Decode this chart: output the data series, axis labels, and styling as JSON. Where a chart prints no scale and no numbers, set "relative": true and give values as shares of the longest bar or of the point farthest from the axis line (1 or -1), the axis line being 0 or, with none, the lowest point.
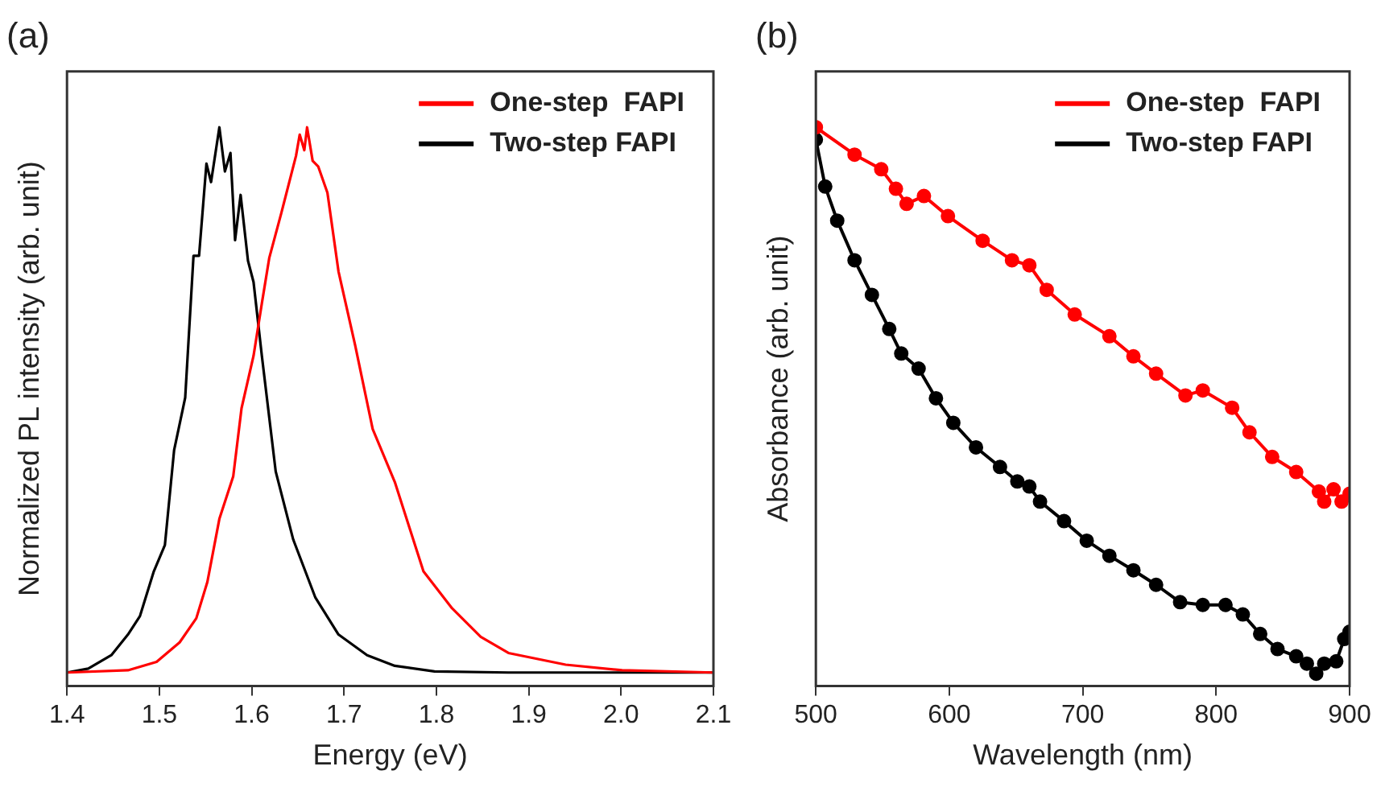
{
  "chart_data": [
    {
      "type": "line",
      "title": "(a)",
      "xlabel": "Energy (eV)",
      "ylabel": "Normalized PL intensity (arb. unit)",
      "relative": true,
      "legend": "top right",
      "xlim": [
        1.4,
        2.1
      ],
      "xticks": [
        1.4,
        1.5,
        1.6,
        1.7,
        1.8,
        1.9,
        {
          "value": 2,
          "label": "2.0"
        },
        2.1
      ],
      "series": [
        {
          "name": "One-step  FAPI",
          "color": "#ff0000",
          "x": [
            1.4,
            1.466,
            1.497,
            1.522,
            1.54,
            1.552,
            1.565,
            1.58,
            1.589,
            1.602,
            1.611,
            1.619,
            1.632,
            1.648,
            1.652,
            1.657,
            1.66,
            1.666,
            1.672,
            1.682,
            1.694,
            1.712,
            1.731,
            1.755,
            1.786,
            1.817,
            1.848,
            1.878,
            1.94,
            2.001,
            2.1
          ],
          "values": [
            0.024,
            0.028,
            0.043,
            0.078,
            0.121,
            0.186,
            0.299,
            0.375,
            0.497,
            0.591,
            0.685,
            0.766,
            0.846,
            0.949,
            0.987,
            0.959,
            1,
            0.94,
            0.93,
            0.883,
            0.742,
            0.61,
            0.46,
            0.365,
            0.205,
            0.139,
            0.088,
            0.059,
            0.038,
            0.028,
            0.024
          ]
        },
        {
          "name": "Two-step FAPI",
          "color": "#000000",
          "x": [
            1.4,
            1.423,
            1.448,
            1.466,
            1.479,
            1.494,
            1.506,
            1.516,
            1.528,
            1.537,
            1.543,
            1.551,
            1.556,
            1.565,
            1.571,
            1.577,
            1.582,
            1.588,
            1.596,
            1.602,
            1.611,
            1.626,
            1.645,
            1.669,
            1.694,
            1.725,
            1.755,
            1.798,
            1.878,
            2.1
          ],
          "values": [
            0.024,
            0.031,
            0.055,
            0.092,
            0.125,
            0.205,
            0.252,
            0.422,
            0.516,
            0.77,
            0.77,
            0.935,
            0.902,
            1,
            0.921,
            0.954,
            0.798,
            0.879,
            0.761,
            0.723,
            0.591,
            0.384,
            0.262,
            0.158,
            0.092,
            0.055,
            0.036,
            0.026,
            0.024,
            0.024
          ]
        }
      ]
    },
    {
      "type": "line",
      "title": "(b)",
      "xlabel": "Wavelength (nm)",
      "ylabel": "Absorbance (arb. unit)",
      "relative": true,
      "legend": "top right",
      "marker": "circle",
      "xlim": [
        500,
        900
      ],
      "xticks": [
        500,
        600,
        700,
        800,
        900
      ],
      "series": [
        {
          "name": "One-step  FAPI",
          "color": "#ff0000",
          "x": [
            500,
            529,
            549,
            560,
            568,
            581,
            599,
            625,
            647,
            660,
            673,
            694,
            720,
            738,
            755,
            777,
            790,
            812,
            825,
            842,
            860,
            877,
            881,
            888,
            894,
            900
          ],
          "values": [
            1,
            0.951,
            0.925,
            0.89,
            0.863,
            0.877,
            0.841,
            0.797,
            0.762,
            0.753,
            0.709,
            0.665,
            0.626,
            0.59,
            0.559,
            0.52,
            0.529,
            0.498,
            0.454,
            0.41,
            0.383,
            0.348,
            0.33,
            0.352,
            0.33,
            0.344
          ]
        },
        {
          "name": "Two-step FAPI",
          "color": "#000000",
          "x": [
            500,
            507,
            516,
            529,
            542,
            555,
            564,
            577,
            590,
            603,
            620,
            638,
            651,
            660,
            668,
            686,
            703,
            720,
            738,
            755,
            773,
            790,
            807,
            820,
            833,
            846,
            860,
            868,
            875,
            881,
            890,
            896,
            900
          ],
          "values": [
            0.978,
            0.894,
            0.833,
            0.762,
            0.7,
            0.639,
            0.595,
            0.568,
            0.515,
            0.471,
            0.427,
            0.392,
            0.366,
            0.357,
            0.33,
            0.295,
            0.26,
            0.233,
            0.207,
            0.181,
            0.15,
            0.145,
            0.145,
            0.128,
            0.093,
            0.066,
            0.053,
            0.04,
            0.022,
            0.04,
            0.044,
            0.084,
            0.097
          ]
        }
      ]
    }
  ]
}
